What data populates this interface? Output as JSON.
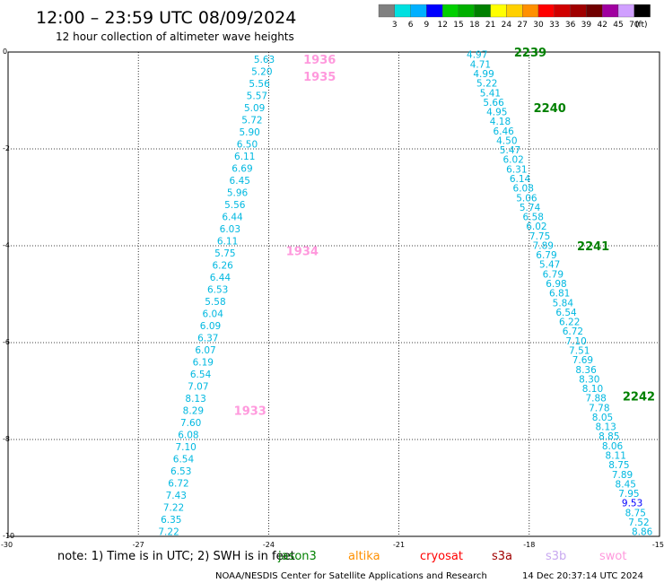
{
  "header": {
    "title": "12:00 – 23:59 UTC 08/09/2024",
    "subtitle": "12 hour collection of altimeter wave heights"
  },
  "color_scale": {
    "labels": [
      "3",
      "6",
      "9",
      "12",
      "15",
      "18",
      "21",
      "24",
      "27",
      "30",
      "33",
      "36",
      "39",
      "42",
      "45",
      "70"
    ],
    "unit": "(ft)",
    "colors": [
      "#808080",
      "#00e0e0",
      "#00b0ff",
      "#0000ff",
      "#00d000",
      "#00b000",
      "#008000",
      "#ffff00",
      "#ffd000",
      "#ff9000",
      "#ff0000",
      "#d00000",
      "#a00000",
      "#700000",
      "#a000a0",
      "#d0a0ff",
      "#000000"
    ]
  },
  "note": {
    "text1": "note:  1) Time is in UTC;  2) SWH is in feet",
    "legend": [
      "jason3",
      "altika",
      "cryosat",
      "s3a",
      "s3b",
      "swot"
    ],
    "legend_colors": [
      "#008000",
      "#ff9000",
      "#ff0000",
      "#a00000",
      "#c8a8f0",
      "#ff99dd"
    ]
  },
  "footer": {
    "credit": "NOAA/NESDIS Center for Satellite Applications and Research",
    "timestamp": "14 Dec 20:37:14 UTC 2024"
  },
  "chart_data": {
    "type": "scatter",
    "title": "12:00 – 23:59 UTC 08/09/2024",
    "xlim": [
      -30,
      -15
    ],
    "ylim": [
      -10,
      0
    ],
    "x_ticks": [
      "-30",
      "-27",
      "-24",
      "-21",
      "-18",
      "-15"
    ],
    "y_ticks": [
      "0",
      "-2",
      "-4",
      "-6",
      "-8",
      "-10"
    ],
    "grid": true,
    "tracks": [
      {
        "values": [
          "5.63",
          "5.20",
          "5.56",
          "5.57",
          "5.09",
          "5.72",
          "5.90",
          "6.50",
          "6.11",
          "6.69",
          "6.45",
          "5.96",
          "5.56",
          "6.44",
          "6.03",
          "6.11",
          "5.75",
          "6.26",
          "6.44",
          "6.53",
          "5.58",
          "6.04",
          "6.09",
          "6.37",
          "6.07",
          "6.19",
          "6.54",
          "7.07",
          "8.13",
          "8.29",
          "7.60",
          "6.08",
          "7.10",
          "6.54",
          "6.53",
          "6.72",
          "7.43",
          "7.22",
          "6.35",
          "7.22"
        ],
        "x_start": -24.1,
        "x_end": -26.3,
        "y_start": -0.15,
        "y_end": -9.9,
        "color": "#00b8e0",
        "highlight": {}
      },
      {
        "values": [
          "4.97",
          "4.71",
          "4.99",
          "5.22",
          "5.41",
          "5.66",
          "4.95",
          "4.18",
          "6.46",
          "4.50",
          "5.47",
          "6.02",
          "6.31",
          "6.14",
          "6.08",
          "5.06",
          "5.74",
          "6.58",
          "6.02",
          "7.75",
          "7.89",
          "6.79",
          "5.47",
          "6.79",
          "6.98",
          "6.81",
          "5.84",
          "6.54",
          "6.22",
          "6.72",
          "7.10",
          "7.51",
          "7.69",
          "8.36",
          "8.30",
          "8.10",
          "7.88",
          "7.78",
          "8.05",
          "8.13",
          "8.85",
          "8.06",
          "8.11",
          "8.75",
          "7.89",
          "8.45",
          "7.95",
          "9.53",
          "8.75",
          "7.52",
          "8.86"
        ],
        "x_start": -19.2,
        "x_end": -15.4,
        "y_start": -0.05,
        "y_end": -9.9,
        "color": "#00b8e0",
        "highlight": {
          "47": "#0000ff"
        }
      }
    ],
    "annotations": [
      {
        "text": "1936",
        "x": -23.2,
        "y": -0.15,
        "color": "#ff99dd"
      },
      {
        "text": "1935",
        "x": -23.2,
        "y": -0.5,
        "color": "#ff99dd"
      },
      {
        "text": "1934",
        "x": -23.6,
        "y": -4.1,
        "color": "#ff99dd"
      },
      {
        "text": "1933",
        "x": -24.8,
        "y": -7.4,
        "color": "#ff99dd"
      },
      {
        "text": "2239",
        "x": -18.35,
        "y": 0.0,
        "color": "#008000"
      },
      {
        "text": "2240",
        "x": -17.9,
        "y": -1.15,
        "color": "#008000"
      },
      {
        "text": "2241",
        "x": -16.9,
        "y": -4.0,
        "color": "#008000"
      },
      {
        "text": "2242",
        "x": -15.85,
        "y": -7.1,
        "color": "#008000"
      }
    ]
  }
}
